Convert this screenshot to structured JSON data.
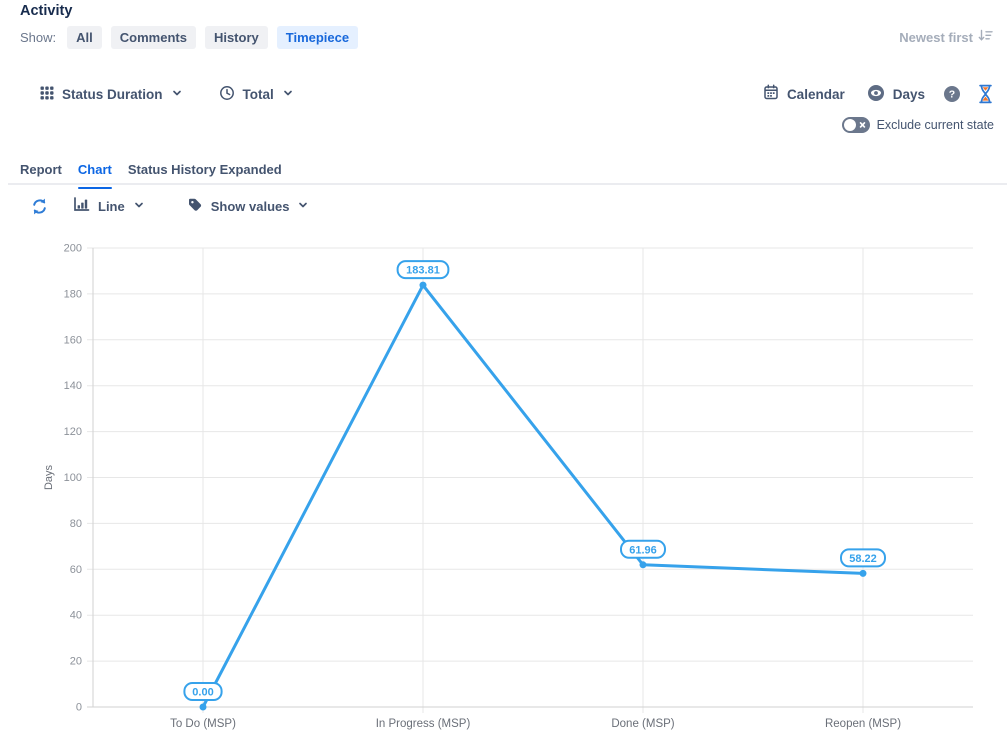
{
  "activity": {
    "title": "Activity",
    "show_label": "Show:",
    "filters": [
      "All",
      "Comments",
      "History",
      "Timepiece"
    ],
    "active_filter": "Timepiece",
    "sort_label": "Newest first"
  },
  "toolbar": {
    "metric": "Status Duration",
    "aggregation": "Total",
    "calendar_label": "Calendar",
    "unit_label": "Days",
    "help_glyph": "?",
    "exclude_label": "Exclude current state"
  },
  "tabs": {
    "items": [
      "Report",
      "Chart",
      "Status History Expanded"
    ],
    "active": "Chart"
  },
  "chart_controls": {
    "chart_type": "Line",
    "values_label": "Show values"
  },
  "colors": {
    "accent_blue": "#1868DB",
    "tab_blue": "#0C66E4",
    "slate": "#44546F",
    "muted_gray": "#A5ADBA",
    "chip_bg": "#F0F1F4",
    "chip_active_bg": "#E5F0FF"
  },
  "chart_data": {
    "type": "line",
    "categories": [
      "To Do (MSP)",
      "In Progress (MSP)",
      "Done (MSP)",
      "Reopen (MSP)"
    ],
    "values": [
      0.0,
      183.81,
      61.96,
      58.22
    ],
    "point_labels": [
      "0.00",
      "183.81",
      "61.96",
      "58.22"
    ],
    "title": "",
    "xlabel": "",
    "ylabel": "Days",
    "ylim": [
      0,
      200
    ],
    "ytick_step": 20,
    "grid": true,
    "legend": "none",
    "colors": {
      "line": "#36A2EB",
      "grid": "#E7E7E7",
      "axis": "#D2D2D2",
      "tick_text": "#8C9199",
      "xlabel_text": "#6A6F78",
      "label_text": "#36A2EB",
      "label_bg": "#FFFFFF"
    }
  }
}
